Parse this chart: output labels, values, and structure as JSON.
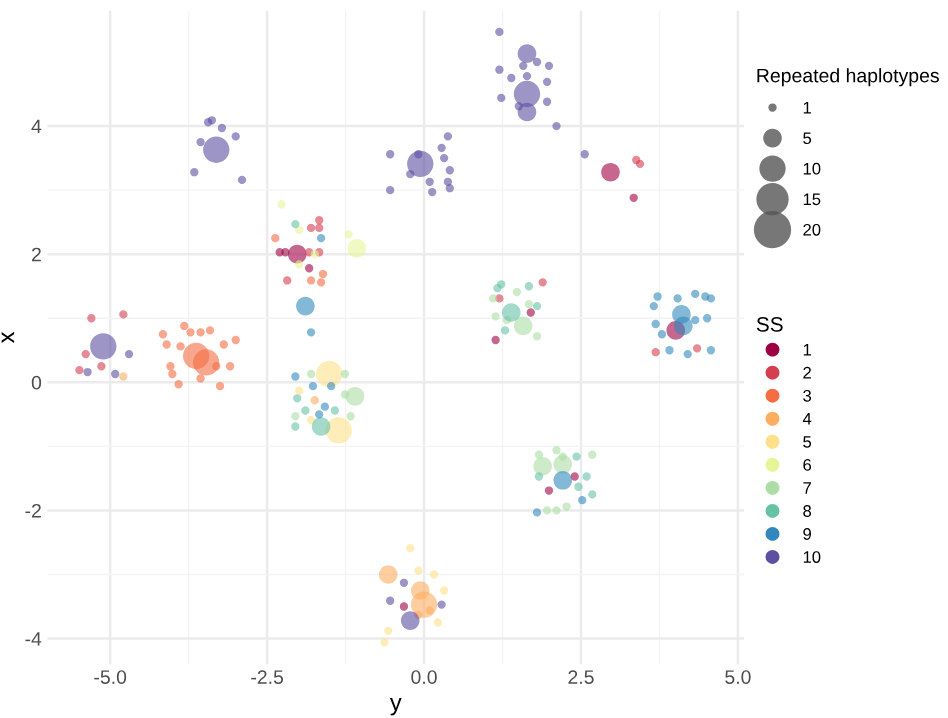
{
  "chart_data": {
    "type": "bubble",
    "xlabel": "y",
    "ylabel": "x",
    "legend_title": [
      "Repeated haplotypes",
      "SS"
    ],
    "size_legend": [
      1,
      5,
      10,
      15,
      20
    ],
    "xlim": [
      -6.0,
      5.1
    ],
    "ylim": [
      -4.4,
      5.8
    ],
    "xticks": [
      {
        "value": -5,
        "label": "-5.0"
      },
      {
        "value": -2.5,
        "label": "-2.5"
      },
      {
        "value": 0,
        "label": "0.0"
      },
      {
        "value": 2.5,
        "label": "2.5"
      },
      {
        "value": 5,
        "label": "5.0"
      }
    ],
    "yticks": [
      {
        "value": -4,
        "label": "-4"
      },
      {
        "value": -2,
        "label": "-2"
      },
      0,
      2,
      4
    ],
    "grid": true,
    "legend": "right",
    "marker": "circle",
    "series": [
      {
        "name": "1",
        "color": "#9e0142",
        "x": [
          2.97,
          3.34,
          -2.3,
          -2.21,
          -2.02,
          -1.83,
          1.7,
          1.14,
          4.01,
          2.4,
          1.99,
          -0.32
        ],
        "values": [
          3.28,
          2.88,
          2.03,
          2.03,
          2.0,
          1.78,
          1.09,
          0.66,
          0.81,
          -1.47,
          -1.69,
          -3.5
        ],
        "sizes": [
          5,
          1,
          1,
          1,
          5,
          1,
          1,
          1,
          5,
          1,
          1,
          1
        ]
      },
      {
        "name": "2",
        "color": "#d53e4f",
        "x": [
          3.38,
          3.44,
          -1.67,
          -1.8,
          -1.67,
          -1.83,
          -1.67,
          -2.18,
          -5.3,
          -4.79,
          -5.39,
          -5.49,
          -5.14,
          1.89,
          1.2,
          3.69,
          4.35
        ],
        "values": [
          3.47,
          3.41,
          2.53,
          2.41,
          2.41,
          2.03,
          2.03,
          1.59,
          1.0,
          1.06,
          0.44,
          0.19,
          0.25,
          1.56,
          1.31,
          0.47,
          0.53
        ],
        "sizes": [
          1,
          1,
          1,
          1,
          1,
          1,
          1,
          1,
          1,
          1,
          1,
          1,
          1,
          1,
          1,
          1,
          1
        ]
      },
      {
        "name": "3",
        "color": "#f46d43",
        "x": [
          -2.37,
          -1.61,
          -1.8,
          -1.64,
          -4.16,
          -3.82,
          -3.72,
          -3.56,
          -3.41,
          -3.0,
          -3.19,
          -4.1,
          -3.88,
          -4.04,
          -3.63,
          -3.47,
          -3.09,
          -3.91,
          -3.56,
          -3.25,
          -4.01,
          -3.31
        ],
        "values": [
          2.25,
          1.69,
          1.59,
          1.56,
          0.75,
          0.88,
          0.78,
          0.78,
          0.81,
          0.66,
          0.59,
          0.59,
          0.56,
          0.25,
          0.41,
          0.31,
          0.25,
          -0.03,
          0.06,
          -0.06,
          0.13,
          0.25
        ],
        "sizes": [
          1,
          1,
          1,
          1,
          1,
          1,
          1,
          1,
          1,
          1,
          1,
          1,
          1,
          1,
          10,
          10,
          1,
          1,
          1,
          1,
          1,
          1
        ]
      },
      {
        "name": "4",
        "color": "#fdae61",
        "x": [
          -4.79,
          -1.74,
          -0.57,
          -0.06,
          -0.09,
          0.09,
          0.0
        ],
        "values": [
          0.09,
          -0.28,
          -3.0,
          -3.25,
          -3.63,
          -3.56,
          -3.47
        ],
        "sizes": [
          1,
          1,
          5,
          5,
          1,
          1,
          10
        ]
      },
      {
        "name": "5",
        "color": "#fee08b",
        "x": [
          -1.51,
          -1.99,
          -1.36,
          -1.8,
          -0.22,
          -0.09,
          0.16,
          0.32,
          -0.57,
          -0.63,
          0.22
        ],
        "values": [
          0.13,
          -0.13,
          -0.75,
          -0.59,
          -2.59,
          -2.94,
          -3.0,
          -3.25,
          -3.88,
          -4.06,
          -3.75
        ],
        "sizes": [
          10,
          1,
          10,
          1,
          1,
          1,
          1,
          1,
          1,
          1,
          1
        ]
      },
      {
        "name": "6",
        "color": "#e6f598",
        "x": [
          -2.27,
          -1.99,
          -1.74,
          -1.99,
          -1.2,
          -1.07
        ],
        "values": [
          2.78,
          2.38,
          2.0,
          1.84,
          2.31,
          2.09
        ],
        "sizes": [
          1,
          1,
          1,
          1,
          1,
          5
        ]
      },
      {
        "name": "7",
        "color": "#abdda4",
        "x": [
          -1.8,
          -1.26,
          -1.26,
          -1.1,
          -2.05,
          -1.17,
          1.48,
          1.1,
          1.67,
          1.14,
          1.32,
          1.58,
          1.8,
          1.83,
          2.11,
          2.21,
          2.68,
          1.89,
          2.21,
          1.96,
          2.11,
          2.27
        ],
        "values": [
          0.13,
          0.13,
          -0.19,
          -0.22,
          -0.53,
          -0.53,
          1.41,
          1.31,
          1.22,
          1.03,
          0.97,
          0.88,
          0.72,
          -1.13,
          -1.06,
          -1.16,
          -1.13,
          -1.31,
          -1.28,
          -2.0,
          -2.0,
          -1.94
        ],
        "sizes": [
          1,
          1,
          1,
          5,
          1,
          1,
          1,
          1,
          1,
          1,
          1,
          5,
          1,
          1,
          1,
          1,
          1,
          5,
          5,
          1,
          1,
          1
        ]
      },
      {
        "name": "8",
        "color": "#66c2a5",
        "x": [
          -2.05,
          -2.02,
          -1.42,
          -1.89,
          -2.05,
          -1.64,
          1.17,
          1.23,
          1.67,
          1.39,
          1.8,
          1.29,
          2.43,
          1.83,
          2.59,
          2.46,
          2.68
        ],
        "values": [
          2.47,
          -0.25,
          -0.44,
          -0.44,
          -0.69,
          -0.69,
          1.47,
          1.53,
          1.5,
          1.09,
          1.19,
          0.81,
          -1.16,
          -1.47,
          -1.47,
          -1.63,
          -1.75
        ],
        "sizes": [
          1,
          1,
          1,
          1,
          1,
          5,
          1,
          1,
          1,
          5,
          1,
          1,
          1,
          1,
          1,
          1,
          1
        ]
      },
      {
        "name": "9",
        "color": "#3288bd",
        "x": [
          -1.64,
          -1.89,
          -1.8,
          -2.05,
          -1.77,
          -1.48,
          -1.58,
          -1.67,
          3.66,
          3.72,
          4.04,
          4.32,
          4.48,
          4.57,
          3.69,
          4.1,
          4.32,
          4.51,
          3.79,
          3.91,
          4.2,
          4.57,
          4.13,
          2.21,
          2.52,
          1.8
        ],
        "values": [
          2.25,
          1.19,
          0.78,
          0.09,
          -0.06,
          -0.06,
          -0.38,
          -0.5,
          1.19,
          1.34,
          1.31,
          1.38,
          1.34,
          1.31,
          0.91,
          1.06,
          0.97,
          1.0,
          0.75,
          0.5,
          0.44,
          0.5,
          0.88,
          -1.53,
          -1.84,
          -2.03
        ],
        "sizes": [
          1,
          5,
          1,
          1,
          1,
          1,
          1,
          1,
          1,
          1,
          1,
          1,
          1,
          1,
          1,
          5,
          1,
          1,
          1,
          1,
          1,
          1,
          5,
          5,
          1,
          1
        ]
      },
      {
        "name": "10",
        "color": "#5e4fa2",
        "x": [
          1.2,
          1.64,
          1.2,
          1.58,
          1.8,
          1.99,
          1.39,
          1.64,
          1.96,
          1.64,
          1.23,
          1.51,
          1.64,
          1.96,
          2.11,
          -0.54,
          -0.09,
          -0.06,
          0.28,
          0.38,
          0.32,
          0.41,
          -0.22,
          0.09,
          0.38,
          0.41,
          0.13,
          -0.54,
          -3.44,
          -3.38,
          -3.56,
          -3.22,
          -3.0,
          -3.31,
          -3.66,
          -2.9,
          2.56,
          -5.11,
          -5.36,
          -4.92,
          -4.7,
          -0.32,
          -0.54,
          0.28,
          -0.22
        ],
        "values": [
          5.47,
          5.13,
          4.88,
          4.94,
          5.0,
          4.94,
          4.75,
          4.78,
          4.69,
          4.5,
          4.44,
          4.31,
          4.22,
          4.38,
          4.0,
          3.56,
          3.56,
          3.41,
          3.66,
          3.84,
          3.5,
          3.31,
          3.25,
          3.13,
          3.13,
          3.03,
          2.97,
          3.0,
          4.06,
          4.09,
          3.75,
          3.97,
          3.84,
          3.63,
          3.28,
          3.16,
          3.56,
          0.56,
          0.16,
          0.13,
          0.44,
          -3.13,
          -3.41,
          -3.47,
          -3.72
        ],
        "sizes": [
          1,
          5,
          1,
          1,
          1,
          1,
          1,
          1,
          1,
          10,
          1,
          1,
          5,
          1,
          1,
          1,
          1,
          10,
          1,
          1,
          1,
          1,
          1,
          1,
          1,
          1,
          1,
          1,
          1,
          1,
          1,
          1,
          1,
          10,
          1,
          1,
          1,
          10,
          1,
          1,
          1,
          1,
          1,
          1,
          5
        ]
      }
    ]
  }
}
